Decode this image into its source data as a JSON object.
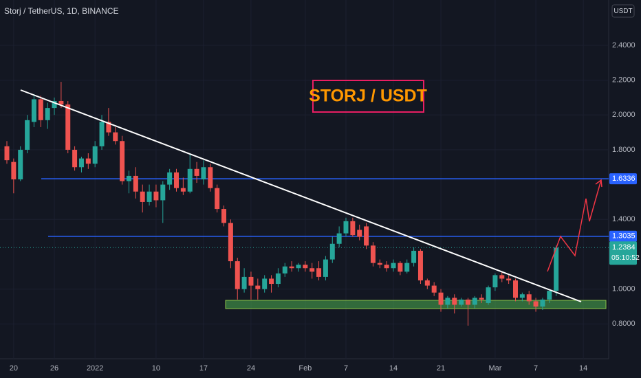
{
  "chart_data": {
    "type": "candlestick",
    "title": "Storj / TetherUS, 1D, BINANCE",
    "currency": "USDT",
    "annotation": "STORJ / USDT",
    "countdown": "05:10:52",
    "categories": [
      null,
      "20",
      null,
      null,
      null,
      null,
      null,
      "26",
      null,
      null,
      null,
      null,
      null,
      "2022",
      null,
      null,
      null,
      null,
      null,
      null,
      null,
      null,
      "10",
      null,
      null,
      null,
      null,
      null,
      null,
      "17",
      null,
      null,
      null,
      null,
      null,
      null,
      "24",
      null,
      null,
      null,
      null,
      null,
      null,
      null,
      "Feb",
      null,
      null,
      null,
      null,
      null,
      "7",
      null,
      null,
      null,
      null,
      null,
      null,
      "14",
      null,
      null,
      null,
      null,
      null,
      null,
      "21",
      null,
      null,
      null,
      null,
      null,
      null,
      null,
      "Mar",
      null,
      null,
      null,
      null,
      null,
      "7",
      null,
      null,
      null,
      null,
      null,
      null,
      "14"
    ],
    "open": [
      1.82,
      1.73,
      1.63,
      1.8,
      1.96,
      2.09,
      1.97,
      2.04,
      2.08,
      2.06,
      1.8,
      1.7,
      1.75,
      1.72,
      1.82,
      1.96,
      1.9,
      1.85,
      1.62,
      1.65,
      1.56,
      1.5,
      1.56,
      1.51,
      1.6,
      1.67,
      1.58,
      1.56,
      1.69,
      1.63,
      1.7,
      1.58,
      1.46,
      1.38,
      1.16,
      1.0,
      1.07,
      1.02,
      1.0,
      1.06,
      1.03,
      1.09,
      1.13,
      1.12,
      1.14,
      1.12,
      1.12,
      1.07,
      1.17,
      1.26,
      1.32,
      1.39,
      1.34,
      1.36,
      1.25,
      1.15,
      1.14,
      1.12,
      1.15,
      1.1,
      1.15,
      1.22,
      1.05,
      1.02,
      0.98,
      0.91,
      0.95,
      0.91,
      0.94,
      0.91,
      0.95,
      0.92,
      1.01,
      1.08,
      1.06,
      1.05,
      0.95,
      0.97,
      0.93,
      0.9,
      0.94,
      0.99,
      null,
      null,
      null,
      null
    ],
    "high": [
      1.85,
      1.75,
      1.82,
      2.0,
      2.12,
      2.11,
      2.07,
      2.1,
      2.19,
      2.08,
      1.82,
      1.76,
      1.78,
      1.85,
      2.0,
      2.04,
      1.93,
      1.88,
      1.68,
      1.7,
      1.6,
      1.6,
      1.6,
      1.62,
      1.69,
      1.69,
      1.64,
      1.78,
      1.73,
      1.74,
      1.72,
      1.6,
      1.48,
      1.4,
      1.18,
      1.12,
      1.1,
      1.06,
      1.08,
      1.08,
      1.12,
      1.15,
      1.16,
      1.15,
      1.16,
      1.15,
      1.16,
      1.19,
      1.3,
      1.36,
      1.41,
      1.41,
      1.37,
      1.38,
      1.27,
      1.17,
      1.16,
      1.17,
      1.16,
      1.17,
      1.24,
      1.23,
      1.06,
      1.04,
      1.0,
      0.96,
      0.97,
      0.95,
      0.95,
      0.96,
      0.97,
      1.02,
      1.09,
      1.1,
      1.08,
      1.06,
      0.98,
      0.99,
      0.95,
      0.95,
      0.99,
      1.25,
      null,
      null,
      null,
      null
    ],
    "low": [
      1.72,
      1.55,
      1.62,
      1.78,
      1.93,
      1.93,
      1.92,
      2.0,
      2.04,
      1.78,
      1.68,
      1.67,
      1.69,
      1.7,
      1.8,
      1.88,
      1.83,
      1.6,
      1.55,
      1.52,
      1.44,
      1.48,
      1.47,
      1.38,
      1.57,
      1.56,
      1.54,
      1.55,
      1.61,
      1.6,
      1.56,
      1.44,
      1.36,
      1.12,
      0.94,
      0.98,
      0.94,
      0.94,
      0.98,
      0.98,
      1.01,
      1.07,
      1.1,
      1.1,
      1.1,
      1.06,
      1.05,
      1.05,
      1.15,
      1.24,
      1.3,
      1.3,
      1.28,
      1.23,
      1.13,
      1.12,
      1.1,
      1.1,
      1.08,
      1.09,
      1.13,
      1.03,
      1.0,
      0.96,
      0.87,
      0.89,
      0.86,
      0.9,
      0.79,
      0.89,
      0.92,
      0.91,
      0.99,
      1.04,
      1.03,
      0.93,
      0.93,
      0.91,
      0.87,
      0.88,
      0.92,
      0.96,
      null,
      null,
      null,
      null
    ],
    "close": [
      1.74,
      1.63,
      1.8,
      1.97,
      2.09,
      1.97,
      2.04,
      2.08,
      2.06,
      1.8,
      1.7,
      1.75,
      1.72,
      1.82,
      1.96,
      1.9,
      1.85,
      1.62,
      1.65,
      1.56,
      1.5,
      1.56,
      1.51,
      1.6,
      1.67,
      1.58,
      1.56,
      1.69,
      1.65,
      1.7,
      1.58,
      1.46,
      1.38,
      1.16,
      1.0,
      1.07,
      1.02,
      1.0,
      1.06,
      1.03,
      1.09,
      1.13,
      1.12,
      1.14,
      1.12,
      1.1,
      1.07,
      1.17,
      1.26,
      1.32,
      1.39,
      1.31,
      1.3,
      1.25,
      1.15,
      1.14,
      1.12,
      1.15,
      1.1,
      1.15,
      1.22,
      1.05,
      1.02,
      0.98,
      0.91,
      0.95,
      0.91,
      0.94,
      0.91,
      0.95,
      0.94,
      1.01,
      1.08,
      1.06,
      1.05,
      0.95,
      0.97,
      0.93,
      0.9,
      0.94,
      0.99,
      1.2384,
      null,
      null,
      null,
      null
    ],
    "up_color": "#26a69a",
    "down_color": "#ef5350",
    "levels": [
      1.6336,
      1.3035
    ],
    "level_color": "#2962ff",
    "ylim": [
      0.6,
      2.66
    ],
    "yticks": [
      {
        "value": 0.8,
        "label": "0.8000"
      },
      {
        "value": 1.0,
        "label": "1.0000"
      },
      {
        "value": 1.4,
        "label": "1.4000"
      },
      {
        "value": 1.8,
        "label": "1.8000"
      },
      {
        "value": 2.0,
        "label": "2.0000"
      },
      {
        "value": 2.2,
        "label": "2.2000"
      },
      {
        "value": 2.4,
        "label": "2.4000"
      }
    ]
  }
}
